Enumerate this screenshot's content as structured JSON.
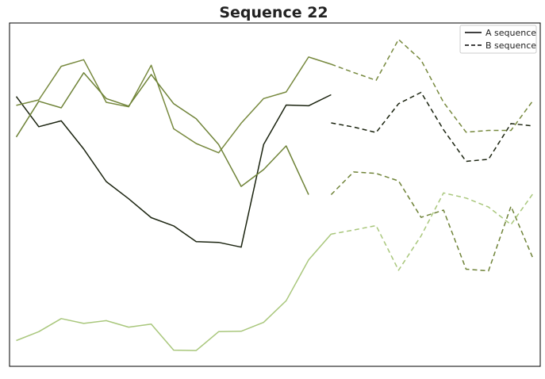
{
  "chart_data": {
    "type": "line",
    "title": "Sequence 22",
    "xlabel": "",
    "ylabel": "",
    "x": [
      0,
      1,
      2,
      3,
      4,
      5,
      6,
      7,
      8,
      9,
      10,
      11,
      12,
      13,
      14,
      15,
      16,
      17,
      18,
      19,
      20,
      21,
      22,
      23
    ],
    "xlim": [
      -0.3,
      23.3
    ],
    "ylim": [
      0,
      100
    ],
    "grid": false,
    "axes_ticks_visible": false,
    "legend": {
      "position": "top-right",
      "entries": [
        {
          "label": "A sequence",
          "linestyle": "solid"
        },
        {
          "label": "B sequence",
          "linestyle": "dashed"
        }
      ]
    },
    "series": [
      {
        "color": "#1b2410",
        "segments": [
          {
            "style": "solid",
            "x_start": 0,
            "values": [
              78.6,
              69.8,
              71.5,
              63.3,
              53.8,
              48.8,
              43.3,
              40.9,
              36.3,
              36.1,
              34.7,
              64.6,
              76.1,
              75.9,
              79.1
            ]
          },
          {
            "style": "dashed",
            "x_start": 14,
            "values": [
              70.9,
              69.7,
              68.1,
              76.5,
              79.8,
              68.9,
              59.7,
              60.3,
              70.7,
              70.0
            ]
          }
        ]
      },
      {
        "color": "#77893e",
        "segments": [
          {
            "style": "solid",
            "x_start": 0,
            "values": [
              76.0,
              77.6,
              87.4,
              89.3,
              76.9,
              75.6,
              87.7,
              69.2,
              64.9,
              62.2,
              70.8,
              78.0,
              79.9,
              90.1,
              88.0
            ]
          },
          {
            "style": "dashed",
            "x_start": 14,
            "values": [
              88.0,
              85.6,
              83.3,
              95.2,
              89.2,
              76.9,
              68.2,
              68.7,
              68.7,
              77.6
            ]
          }
        ]
      },
      {
        "color": "#6f8338",
        "segments": [
          {
            "style": "solid",
            "x_start": 0,
            "values": [
              66.8,
              77.2,
              75.3,
              85.5,
              78.0,
              75.8,
              85.0,
              76.5,
              72.1,
              64.6,
              52.4,
              57.3,
              64.2,
              50.0
            ]
          },
          {
            "style": "dashed",
            "x_start": 14,
            "values": [
              50.0,
              56.6,
              56.2,
              54.0,
              43.4,
              45.5,
              28.3,
              27.8,
              46.6,
              31.1
            ]
          }
        ]
      },
      {
        "color": "#a9c77c",
        "segments": [
          {
            "style": "solid",
            "x_start": 0,
            "values": [
              7.5,
              10.1,
              13.9,
              12.5,
              13.3,
              11.4,
              12.3,
              4.7,
              4.6,
              10.1,
              10.2,
              12.8,
              19.1,
              31.0,
              38.5
            ]
          },
          {
            "style": "dashed",
            "x_start": 14,
            "values": [
              38.5,
              39.7,
              41.0,
              28.0,
              38.0,
              50.5,
              49.0,
              46.4,
              41.3,
              50.5
            ]
          }
        ]
      }
    ]
  }
}
